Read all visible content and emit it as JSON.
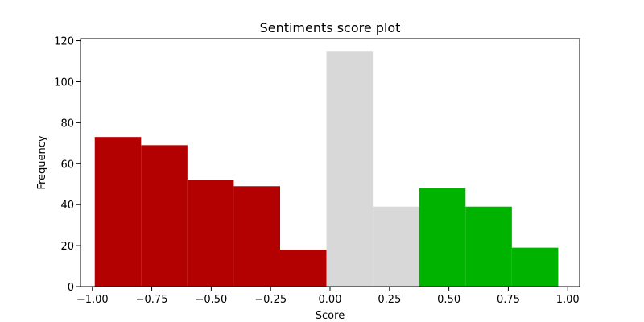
{
  "chart_data": {
    "type": "bar",
    "title": "Sentiments score plot",
    "xlabel": "Score",
    "ylabel": "Frequency",
    "xlim": [
      -1.05,
      1.05
    ],
    "ylim": [
      0,
      121
    ],
    "xticks": [
      "−1.00",
      "−0.75",
      "−0.50",
      "−0.25",
      "0.00",
      "0.25",
      "0.50",
      "0.75",
      "1.00"
    ],
    "xtick_values": [
      -1.0,
      -0.75,
      -0.5,
      -0.25,
      0.0,
      0.25,
      0.5,
      0.75,
      1.0
    ],
    "yticks": [
      "0",
      "20",
      "40",
      "60",
      "80",
      "100",
      "120"
    ],
    "ytick_values": [
      0,
      20,
      40,
      60,
      80,
      100,
      120
    ],
    "grid": false,
    "bins": [
      {
        "x0": -0.99,
        "x1": -0.795,
        "value": 73,
        "color": "#b30000"
      },
      {
        "x0": -0.795,
        "x1": -0.6,
        "value": 69,
        "color": "#b30000"
      },
      {
        "x0": -0.6,
        "x1": -0.405,
        "value": 52,
        "color": "#b30000"
      },
      {
        "x0": -0.405,
        "x1": -0.21,
        "value": 49,
        "color": "#b30000"
      },
      {
        "x0": -0.21,
        "x1": -0.015,
        "value": 18,
        "color": "#b30000"
      },
      {
        "x0": -0.015,
        "x1": 0.18,
        "value": 115,
        "color": "#d8d8d8"
      },
      {
        "x0": 0.18,
        "x1": 0.375,
        "value": 39,
        "color": "#d8d8d8"
      },
      {
        "x0": 0.375,
        "x1": 0.57,
        "value": 48,
        "color": "#00b300"
      },
      {
        "x0": 0.57,
        "x1": 0.765,
        "value": 39,
        "color": "#00b300"
      },
      {
        "x0": 0.765,
        "x1": 0.96,
        "value": 19,
        "color": "#00b300"
      }
    ]
  }
}
